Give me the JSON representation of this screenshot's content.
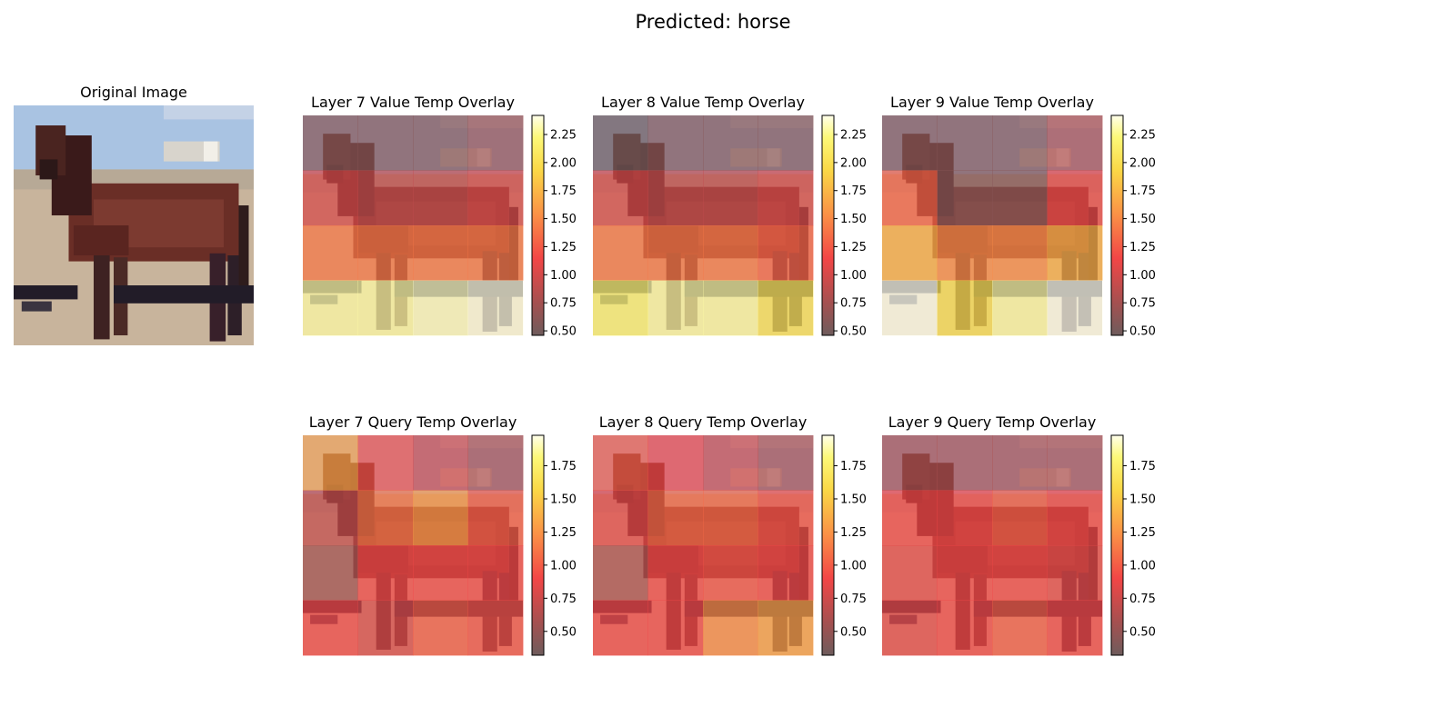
{
  "figure": {
    "suptitle": "Predicted: horse"
  },
  "original": {
    "title": "Original Image"
  },
  "chart_data": [
    {
      "type": "heatmap",
      "title": "Layer 7 Value Temp Overlay",
      "colormap": "hot",
      "colorbar": {
        "vmin": 0.46,
        "vmax": 2.42,
        "ticks": [
          0.5,
          0.75,
          1.0,
          1.25,
          1.5,
          1.75,
          2.0,
          2.25
        ],
        "tick_labels": [
          "0.50",
          "0.75",
          "1.00",
          "1.25",
          "1.50",
          "1.75",
          "2.00",
          "2.25"
        ]
      },
      "grid": [
        [
          0.6,
          0.6,
          0.6,
          0.7
        ],
        [
          1.0,
          0.9,
          0.9,
          1.0
        ],
        [
          1.4,
          1.4,
          1.4,
          1.4
        ],
        [
          2.3,
          2.3,
          2.35,
          2.4
        ]
      ]
    },
    {
      "type": "heatmap",
      "title": "Layer 8 Value Temp Overlay",
      "colormap": "hot",
      "colorbar": {
        "vmin": 0.46,
        "vmax": 2.42,
        "ticks": [
          0.5,
          0.75,
          1.0,
          1.25,
          1.5,
          1.75,
          2.0,
          2.25
        ],
        "tick_labels": [
          "0.50",
          "0.75",
          "1.00",
          "1.25",
          "1.50",
          "1.75",
          "2.00",
          "2.25"
        ]
      },
      "grid": [
        [
          0.5,
          0.6,
          0.6,
          0.6
        ],
        [
          1.0,
          0.9,
          0.9,
          1.0
        ],
        [
          1.4,
          1.4,
          1.4,
          1.3
        ],
        [
          2.2,
          2.3,
          2.3,
          2.05
        ]
      ]
    },
    {
      "type": "heatmap",
      "title": "Layer 9 Value Temp Overlay",
      "colormap": "hot",
      "colorbar": {
        "vmin": 0.46,
        "vmax": 2.42,
        "ticks": [
          0.5,
          0.75,
          1.0,
          1.25,
          1.5,
          1.75,
          2.0,
          2.25
        ],
        "tick_labels": [
          "0.50",
          "0.75",
          "1.00",
          "1.25",
          "1.50",
          "1.75",
          "2.00",
          "2.25"
        ]
      },
      "grid": [
        [
          0.6,
          0.6,
          0.6,
          0.8
        ],
        [
          1.3,
          0.6,
          0.6,
          1.1
        ],
        [
          1.7,
          1.5,
          1.5,
          1.7
        ],
        [
          2.42,
          2.0,
          2.3,
          2.42
        ]
      ]
    },
    {
      "type": "heatmap",
      "title": "Layer 7 Query Temp Overlay",
      "colormap": "hot",
      "colorbar": {
        "vmin": 0.32,
        "vmax": 1.98,
        "ticks": [
          0.5,
          0.75,
          1.0,
          1.25,
          1.5,
          1.75
        ],
        "tick_labels": [
          "0.50",
          "0.75",
          "1.00",
          "1.25",
          "1.50",
          "1.75"
        ]
      },
      "grid": [
        [
          1.3,
          0.95,
          0.75,
          0.6
        ],
        [
          0.7,
          1.1,
          1.25,
          1.0
        ],
        [
          0.55,
          0.9,
          0.9,
          0.9
        ],
        [
          0.9,
          0.8,
          1.0,
          0.95
        ]
      ]
    },
    {
      "type": "heatmap",
      "title": "Layer 8 Query Temp Overlay",
      "colormap": "hot",
      "colorbar": {
        "vmin": 0.32,
        "vmax": 1.98,
        "ticks": [
          0.5,
          0.75,
          1.0,
          1.25,
          1.5,
          1.75
        ],
        "tick_labels": [
          "0.50",
          "0.75",
          "1.00",
          "1.25",
          "1.50",
          "1.75"
        ]
      },
      "grid": [
        [
          1.0,
          0.9,
          0.75,
          0.6
        ],
        [
          0.85,
          1.05,
          1.05,
          0.95
        ],
        [
          0.6,
          0.9,
          0.95,
          0.9
        ],
        [
          0.9,
          0.9,
          1.2,
          1.3
        ]
      ]
    },
    {
      "type": "heatmap",
      "title": "Layer 9 Query Temp Overlay",
      "colormap": "hot",
      "colorbar": {
        "vmin": 0.32,
        "vmax": 1.98,
        "ticks": [
          0.5,
          0.75,
          1.0,
          1.25,
          1.5,
          1.75
        ],
        "tick_labels": [
          "0.50",
          "0.75",
          "1.00",
          "1.25",
          "1.50",
          "1.75"
        ]
      },
      "grid": [
        [
          0.6,
          0.6,
          0.6,
          0.6
        ],
        [
          0.9,
          0.9,
          1.0,
          0.9
        ],
        [
          0.85,
          0.9,
          0.9,
          0.85
        ],
        [
          0.85,
          0.9,
          1.0,
          0.9
        ]
      ]
    }
  ]
}
